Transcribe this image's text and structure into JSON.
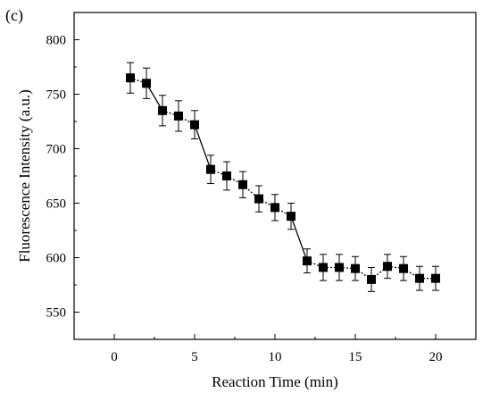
{
  "panel_label": "(c)",
  "chart_data": {
    "type": "line",
    "title": "",
    "xlabel": "Reaction Time (min)",
    "ylabel": "Fluorescence Intensity (a.u.)",
    "xlim": [
      -2.5,
      22.5
    ],
    "ylim": [
      525,
      825
    ],
    "xticks": [
      0,
      5,
      10,
      15,
      20
    ],
    "yticks": [
      550,
      600,
      650,
      700,
      750,
      800
    ],
    "grid": false,
    "legend": "none",
    "series": [
      {
        "x": [
          1,
          2,
          3,
          4,
          5,
          6,
          7,
          8,
          9,
          10,
          11,
          12,
          13,
          14,
          15,
          16,
          17,
          18,
          19,
          20
        ],
        "y": [
          765,
          760,
          735,
          730,
          722,
          681,
          675,
          667,
          654,
          646,
          638,
          597,
          591,
          591,
          590,
          580,
          592,
          590,
          581,
          581
        ],
        "error": [
          14,
          14,
          14,
          14,
          13,
          13,
          13,
          12,
          12,
          12,
          12,
          11,
          12,
          12,
          11,
          11,
          11,
          11,
          11,
          11
        ],
        "segment_styles": [
          "dotted",
          "solid",
          "dotted",
          "dotted",
          "solid",
          "dotted",
          "dotted",
          "dotted",
          "dotted",
          "dotted",
          "solid",
          "dotted",
          "dotted",
          "dotted",
          "dotted",
          "dotted",
          "dotted",
          "dotted",
          "dotted"
        ],
        "marker": "square",
        "color": "#000000"
      }
    ]
  }
}
